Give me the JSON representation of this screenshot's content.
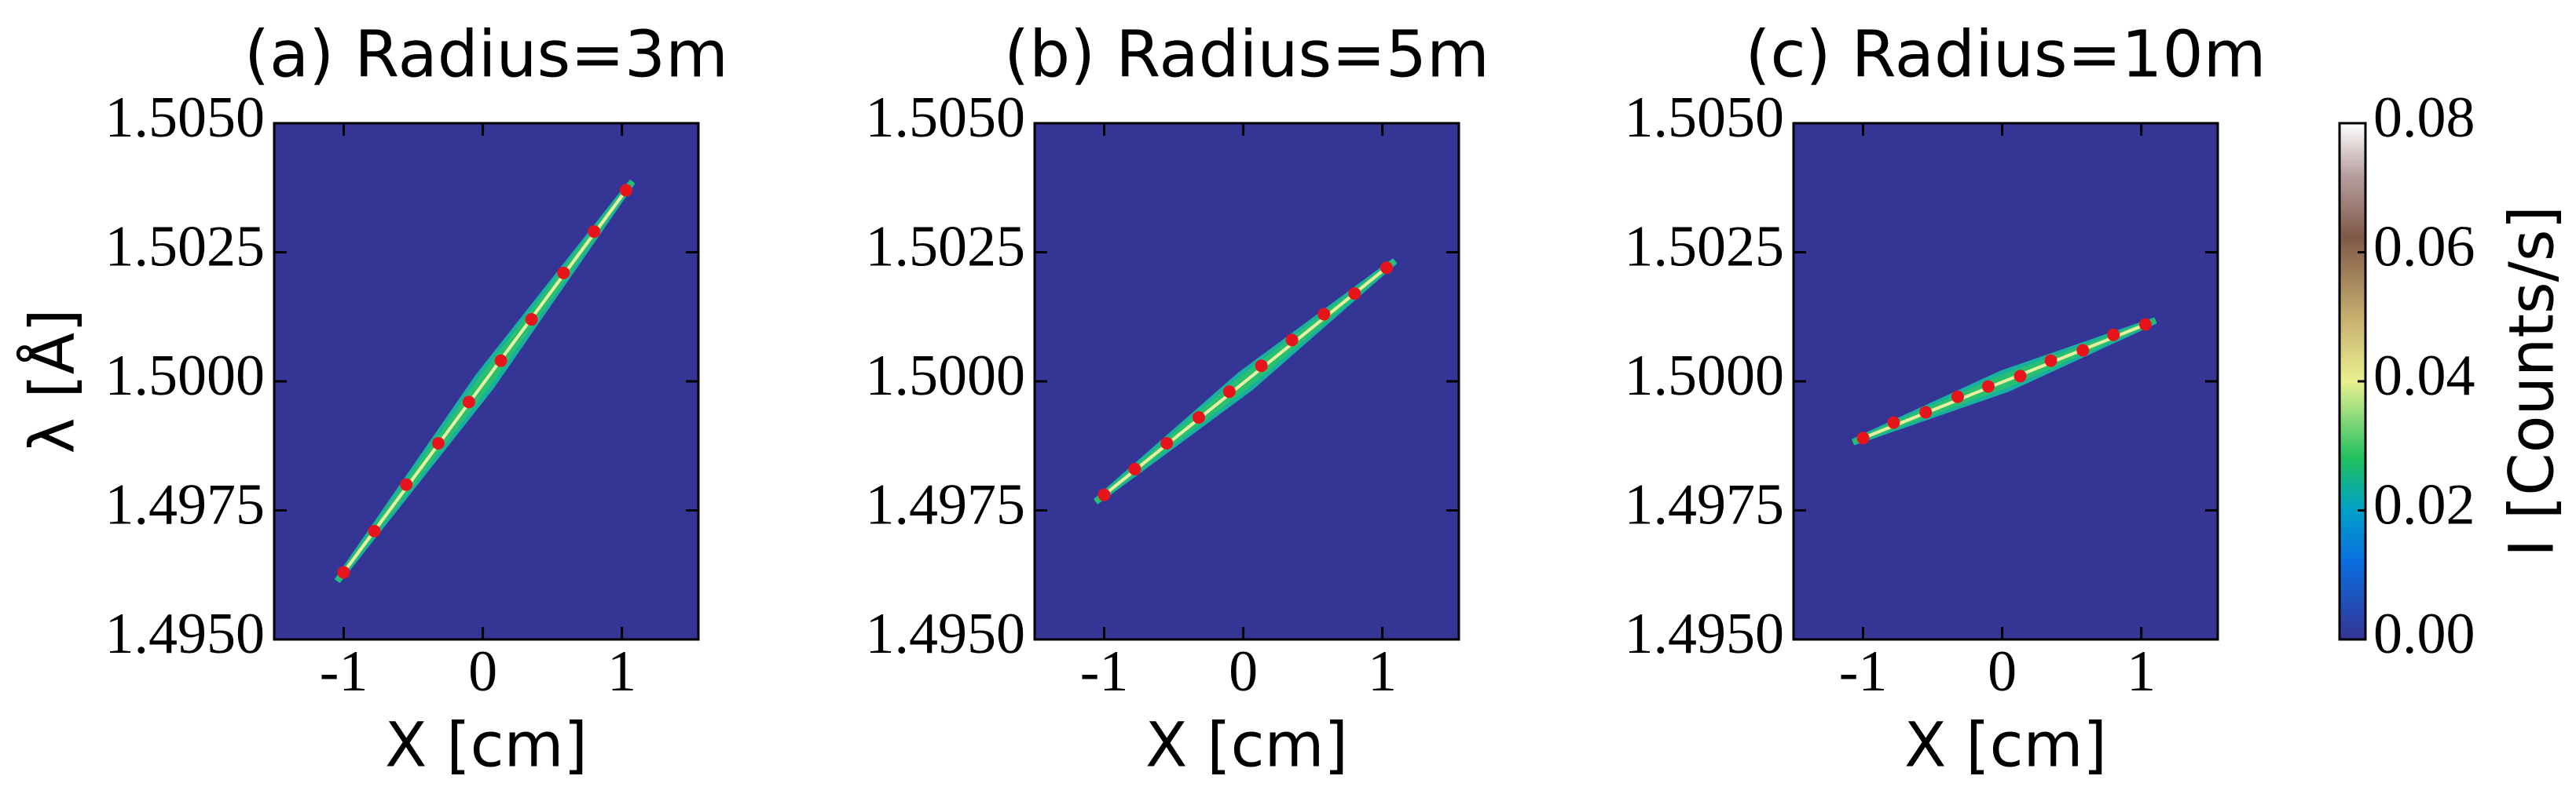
{
  "chart_data": [
    {
      "type": "scatter",
      "title": "(a) Radius=3m",
      "xlabel": "X [cm]",
      "ylabel": "λ [Å]",
      "x": [
        -1.0,
        -0.78,
        -0.55,
        -0.32,
        -0.1,
        0.13,
        0.35,
        0.58,
        0.8,
        1.03
      ],
      "values": [
        1.4963,
        1.4971,
        1.498,
        1.4988,
        1.4996,
        1.5004,
        1.5012,
        1.5021,
        1.5029,
        1.5037
      ],
      "color": "#e8141c",
      "background": "#353595",
      "xlim": [
        -1.5,
        1.55
      ],
      "xticks": [
        -1,
        0,
        1
      ],
      "ylim": [
        1.495,
        1.505
      ],
      "yticks": [
        {
          "value": 1.495,
          "label": "1.4950"
        },
        {
          "value": 1.4975,
          "label": "1.4975"
        },
        {
          "value": 1.5,
          "label": "1.5000"
        },
        {
          "value": 1.5025,
          "label": "1.5025"
        },
        {
          "value": 1.505,
          "label": "1.5050"
        }
      ]
    },
    {
      "type": "scatter",
      "title": "(b) Radius=5m",
      "xlabel": "X [cm]",
      "x": [
        -1.0,
        -0.78,
        -0.55,
        -0.32,
        -0.1,
        0.13,
        0.35,
        0.58,
        0.8,
        1.03
      ],
      "values": [
        1.4978,
        1.4983,
        1.4988,
        1.4993,
        1.4998,
        1.5003,
        1.5008,
        1.5013,
        1.5017,
        1.5022
      ],
      "color": "#e8141c",
      "background": "#353595",
      "xlim": [
        -1.5,
        1.55
      ],
      "xticks": [
        -1,
        0,
        1
      ],
      "ylim": [
        1.495,
        1.505
      ],
      "yticks": [
        {
          "value": 1.495,
          "label": "1.4950"
        },
        {
          "value": 1.4975,
          "label": "1.4975"
        },
        {
          "value": 1.5,
          "label": "1.5000"
        },
        {
          "value": 1.5025,
          "label": "1.5025"
        },
        {
          "value": 1.505,
          "label": "1.5050"
        }
      ]
    },
    {
      "type": "scatter",
      "title": "(c) Radius=10m",
      "xlabel": "X [cm]",
      "x": [
        -1.0,
        -0.78,
        -0.55,
        -0.32,
        -0.1,
        0.13,
        0.35,
        0.58,
        0.8,
        1.03
      ],
      "values": [
        1.4989,
        1.4992,
        1.4994,
        1.4997,
        1.4999,
        1.5001,
        1.5004,
        1.5006,
        1.5009,
        1.5011
      ],
      "color": "#e8141c",
      "background": "#353595",
      "xlim": [
        -1.5,
        1.55
      ],
      "xticks": [
        -1,
        0,
        1
      ],
      "ylim": [
        1.495,
        1.505
      ],
      "yticks": [
        {
          "value": 1.495,
          "label": "1.4950"
        },
        {
          "value": 1.4975,
          "label": "1.4975"
        },
        {
          "value": 1.5,
          "label": "1.5000"
        },
        {
          "value": 1.5025,
          "label": "1.5025"
        },
        {
          "value": 1.505,
          "label": "1.5050"
        }
      ]
    }
  ],
  "colorbar": {
    "label": "I [Counts/s]",
    "lim": [
      0,
      0.08
    ],
    "ticks": [
      {
        "value": 0,
        "label": "0.00"
      },
      {
        "value": 0.02,
        "label": "0.02"
      },
      {
        "value": 0.04,
        "label": "0.04"
      },
      {
        "value": 0.06,
        "label": "0.06"
      },
      {
        "value": 0.08,
        "label": "0.08"
      }
    ]
  }
}
